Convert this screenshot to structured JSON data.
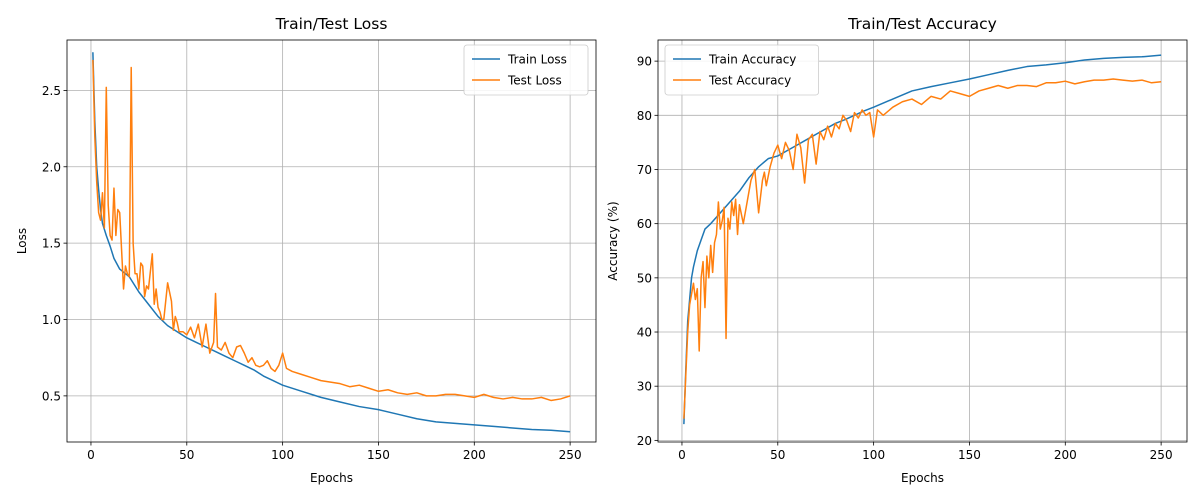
{
  "chart_data": [
    {
      "type": "line",
      "title": "Train/Test Loss",
      "xlabel": "Epochs",
      "ylabel": "Loss",
      "xlim": [
        -12.5,
        263.5
      ],
      "ylim": [
        0.198,
        2.83
      ],
      "xticks": [
        0,
        50,
        100,
        150,
        200,
        250
      ],
      "yticks": [
        0.5,
        1.0,
        1.5,
        2.0,
        2.5
      ],
      "ytick_labels": [
        "0.5",
        "1.0",
        "1.5",
        "2.0",
        "2.5"
      ],
      "grid": true,
      "legend_position": "top-right",
      "series": [
        {
          "name": "Train Loss",
          "color": "#1f77b4",
          "x": [
            1,
            2,
            3,
            4,
            5,
            6,
            8,
            10,
            12,
            15,
            20,
            25,
            30,
            35,
            40,
            45,
            50,
            55,
            60,
            65,
            70,
            75,
            80,
            85,
            90,
            95,
            100,
            110,
            120,
            130,
            140,
            150,
            160,
            170,
            180,
            190,
            200,
            210,
            220,
            230,
            240,
            250
          ],
          "y": [
            2.75,
            2.3,
            2.0,
            1.85,
            1.72,
            1.63,
            1.55,
            1.48,
            1.4,
            1.33,
            1.28,
            1.18,
            1.1,
            1.02,
            0.96,
            0.92,
            0.88,
            0.85,
            0.82,
            0.79,
            0.76,
            0.73,
            0.7,
            0.67,
            0.63,
            0.6,
            0.57,
            0.53,
            0.49,
            0.46,
            0.43,
            0.41,
            0.38,
            0.35,
            0.33,
            0.32,
            0.31,
            0.3,
            0.29,
            0.28,
            0.275,
            0.265
          ]
        },
        {
          "name": "Test Loss",
          "color": "#ff7f0e",
          "x": [
            1,
            2,
            3,
            4,
            5,
            6,
            7,
            8,
            9,
            10,
            11,
            12,
            13,
            14,
            15,
            16,
            17,
            18,
            19,
            20,
            21,
            22,
            23,
            24,
            25,
            26,
            27,
            28,
            29,
            30,
            32,
            33,
            34,
            35,
            36,
            37,
            38,
            40,
            42,
            43,
            44,
            45,
            46,
            48,
            50,
            52,
            54,
            56,
            58,
            60,
            62,
            64,
            65,
            66,
            68,
            70,
            72,
            74,
            76,
            78,
            80,
            82,
            84,
            86,
            88,
            90,
            92,
            94,
            96,
            98,
            100,
            102,
            105,
            110,
            115,
            120,
            125,
            130,
            135,
            140,
            145,
            150,
            155,
            160,
            165,
            170,
            175,
            180,
            185,
            190,
            195,
            200,
            205,
            210,
            215,
            220,
            225,
            230,
            235,
            240,
            245,
            250
          ],
          "y": [
            2.7,
            2.2,
            1.9,
            1.7,
            1.65,
            1.83,
            1.6,
            2.52,
            1.75,
            1.55,
            1.52,
            1.86,
            1.55,
            1.72,
            1.7,
            1.45,
            1.2,
            1.35,
            1.3,
            1.28,
            2.65,
            1.5,
            1.3,
            1.3,
            1.2,
            1.37,
            1.35,
            1.15,
            1.22,
            1.2,
            1.43,
            1.1,
            1.2,
            1.08,
            1.05,
            1.0,
            1.0,
            1.24,
            1.12,
            0.93,
            1.02,
            0.98,
            0.92,
            0.92,
            0.9,
            0.95,
            0.88,
            0.97,
            0.82,
            0.97,
            0.78,
            0.85,
            1.17,
            0.82,
            0.8,
            0.85,
            0.78,
            0.75,
            0.82,
            0.83,
            0.78,
            0.72,
            0.75,
            0.7,
            0.69,
            0.7,
            0.73,
            0.68,
            0.66,
            0.7,
            0.78,
            0.68,
            0.66,
            0.64,
            0.62,
            0.6,
            0.59,
            0.58,
            0.56,
            0.57,
            0.55,
            0.53,
            0.54,
            0.52,
            0.51,
            0.52,
            0.5,
            0.5,
            0.51,
            0.51,
            0.5,
            0.49,
            0.51,
            0.49,
            0.48,
            0.49,
            0.48,
            0.48,
            0.49,
            0.47,
            0.48,
            0.5
          ]
        }
      ]
    },
    {
      "type": "line",
      "title": "Train/Test Accuracy",
      "xlabel": "Epochs",
      "ylabel": "Accuracy (%)",
      "xlim": [
        -12.5,
        263.5
      ],
      "ylim": [
        19.7,
        93.9
      ],
      "xticks": [
        0,
        50,
        100,
        150,
        200,
        250
      ],
      "yticks": [
        20,
        30,
        40,
        50,
        60,
        70,
        80,
        90
      ],
      "ytick_labels": [
        "20",
        "30",
        "40",
        "50",
        "60",
        "70",
        "80",
        "90"
      ],
      "grid": true,
      "legend_position": "top-left",
      "series": [
        {
          "name": "Train Accuracy",
          "color": "#1f77b4",
          "x": [
            1,
            2,
            3,
            4,
            5,
            6,
            8,
            10,
            12,
            15,
            20,
            25,
            30,
            35,
            40,
            45,
            50,
            55,
            60,
            65,
            70,
            75,
            80,
            85,
            90,
            95,
            100,
            110,
            120,
            130,
            140,
            150,
            160,
            170,
            180,
            190,
            200,
            210,
            220,
            230,
            240,
            250
          ],
          "y": [
            23,
            33,
            42,
            46,
            50,
            52,
            55,
            57,
            59,
            60,
            62,
            64,
            66,
            68.5,
            70.5,
            72,
            72.5,
            73.5,
            74.5,
            75.5,
            76.5,
            77.5,
            78.5,
            79.2,
            80,
            80.8,
            81.5,
            83,
            84.5,
            85.3,
            86,
            86.7,
            87.5,
            88.3,
            89,
            89.3,
            89.7,
            90.2,
            90.5,
            90.7,
            90.8,
            91.1
          ]
        },
        {
          "name": "Test Accuracy",
          "color": "#ff7f0e",
          "x": [
            1,
            2,
            3,
            4,
            5,
            6,
            7,
            8,
            9,
            10,
            11,
            12,
            13,
            14,
            15,
            16,
            17,
            18,
            19,
            20,
            21,
            22,
            23,
            24,
            25,
            26,
            27,
            28,
            29,
            30,
            32,
            34,
            36,
            38,
            40,
            42,
            43,
            44,
            46,
            48,
            50,
            52,
            54,
            56,
            58,
            60,
            62,
            64,
            66,
            68,
            70,
            72,
            74,
            76,
            78,
            80,
            82,
            84,
            86,
            88,
            90,
            92,
            94,
            96,
            98,
            100,
            102,
            105,
            110,
            115,
            120,
            125,
            130,
            135,
            140,
            145,
            150,
            155,
            160,
            165,
            170,
            175,
            180,
            185,
            190,
            195,
            200,
            205,
            210,
            215,
            220,
            225,
            230,
            235,
            240,
            245,
            250
          ],
          "y": [
            24,
            32,
            40,
            45,
            47,
            49,
            46,
            48,
            36.5,
            50,
            53,
            44.5,
            54,
            50,
            56,
            51,
            56.5,
            58,
            64,
            59,
            60.5,
            63,
            38.8,
            61,
            59,
            64,
            61.5,
            64.5,
            58,
            63.5,
            60,
            64,
            68,
            70,
            62,
            68,
            69.5,
            67,
            70.5,
            73,
            74.5,
            72,
            75,
            73.5,
            70,
            76.5,
            74,
            67.5,
            75.5,
            76.5,
            71,
            77,
            75.5,
            78,
            76,
            78.5,
            77.5,
            80,
            79,
            77,
            80.5,
            79.5,
            81,
            80,
            80.5,
            76,
            81,
            80,
            81.5,
            82.5,
            83,
            82,
            83.5,
            83,
            84.5,
            84,
            83.5,
            84.5,
            85,
            85.5,
            85,
            85.5,
            85.5,
            85.3,
            86,
            86,
            86.3,
            85.8,
            86.2,
            86.5,
            86.5,
            86.7,
            86.5,
            86.3,
            86.5,
            86,
            86.2
          ]
        }
      ]
    }
  ]
}
